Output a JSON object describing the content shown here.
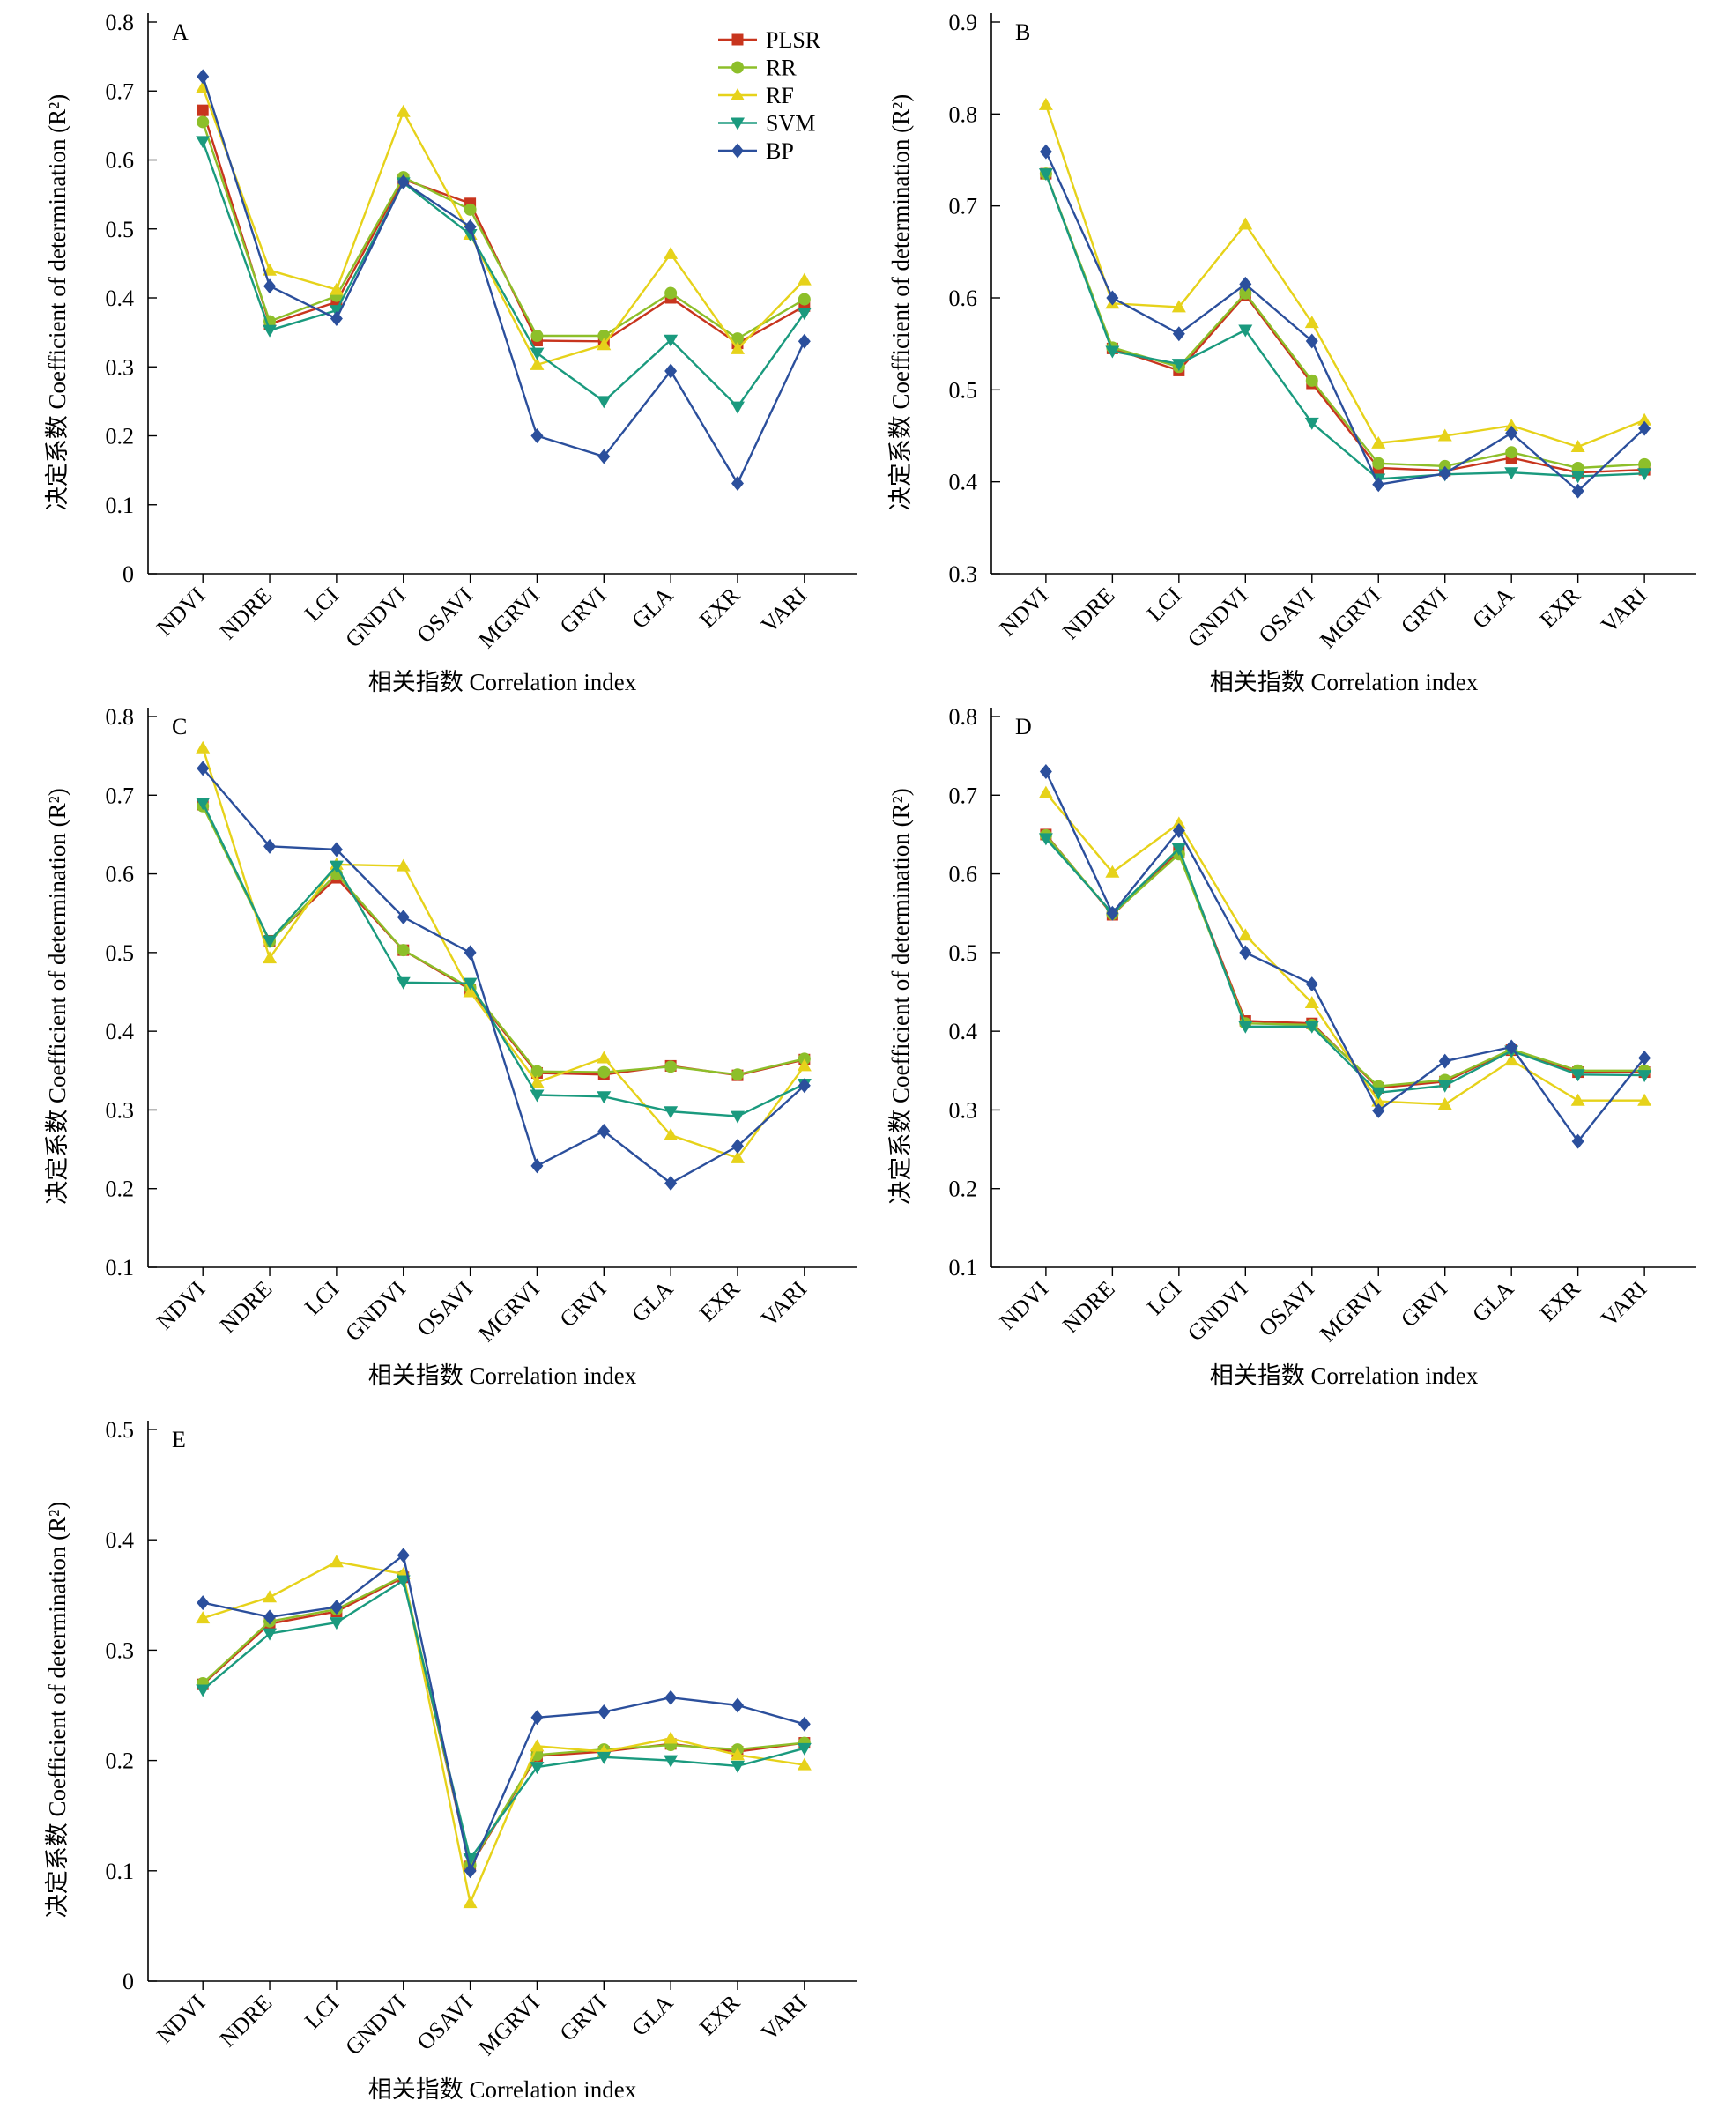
{
  "legend_labels": [
    "PLSR",
    "RR",
    "RF",
    "SVM",
    "BP"
  ],
  "colors": {
    "PLSR": "#c8351e",
    "RR": "#8dbf2a",
    "RF": "#e6d21a",
    "SVM": "#1a9a7e",
    "BP": "#2b4f9c"
  },
  "markers": {
    "PLSR": "square",
    "RR": "circle",
    "RF": "triangle-up",
    "SVM": "triangle-down",
    "BP": "diamond"
  },
  "chart_data": [
    {
      "type": "line",
      "panel_label": "A",
      "categories": [
        "NDVI",
        "NDRE",
        "LCI",
        "GNDVI",
        "OSAVI",
        "MGRVI",
        "GRVI",
        "GLA",
        "EXR",
        "VARI"
      ],
      "xlabel": "相关指数 Correlation index",
      "ylabel": "决定系数 Coefficient of determination (R²)",
      "ylim": [
        0,
        0.8
      ],
      "yticks": [
        "0",
        "0.1",
        "0.2",
        "0.3",
        "0.4",
        "0.5",
        "0.6",
        "0.7",
        "0.8"
      ],
      "legend": "top-right",
      "series": [
        {
          "name": "PLSR",
          "values": [
            0.672,
            0.362,
            0.394,
            0.572,
            0.537,
            0.338,
            0.337,
            0.4,
            0.334,
            0.388
          ]
        },
        {
          "name": "RR",
          "values": [
            0.655,
            0.366,
            0.403,
            0.575,
            0.528,
            0.345,
            0.345,
            0.407,
            0.341,
            0.398
          ]
        },
        {
          "name": "RF",
          "values": [
            0.705,
            0.44,
            0.412,
            0.67,
            0.492,
            0.303,
            0.332,
            0.464,
            0.326,
            0.426
          ]
        },
        {
          "name": "SVM",
          "values": [
            0.627,
            0.353,
            0.382,
            0.567,
            0.492,
            0.32,
            0.25,
            0.339,
            0.242,
            0.378
          ]
        },
        {
          "name": "BP",
          "values": [
            0.721,
            0.417,
            0.37,
            0.568,
            0.503,
            0.2,
            0.17,
            0.294,
            0.131,
            0.337
          ]
        }
      ]
    },
    {
      "type": "line",
      "panel_label": "B",
      "categories": [
        "NDVI",
        "NDRE",
        "LCI",
        "GNDVI",
        "OSAVI",
        "MGRVI",
        "GRVI",
        "GLA",
        "EXR",
        "VARI"
      ],
      "xlabel": "相关指数 Correlation index",
      "ylabel": "决定系数 Coefficient of determination (R²)",
      "ylim": [
        0.3,
        0.9
      ],
      "yticks": [
        "0.3",
        "0.4",
        "0.5",
        "0.6",
        "0.7",
        "0.8",
        "0.9"
      ],
      "series": [
        {
          "name": "PLSR",
          "values": [
            0.735,
            0.545,
            0.521,
            0.603,
            0.507,
            0.415,
            0.412,
            0.426,
            0.41,
            0.413
          ]
        },
        {
          "name": "RR",
          "values": [
            0.735,
            0.546,
            0.525,
            0.605,
            0.51,
            0.42,
            0.417,
            0.432,
            0.415,
            0.419
          ]
        },
        {
          "name": "RF",
          "values": [
            0.81,
            0.594,
            0.59,
            0.68,
            0.573,
            0.442,
            0.45,
            0.461,
            0.438,
            0.467
          ]
        },
        {
          "name": "SVM",
          "values": [
            0.735,
            0.542,
            0.528,
            0.565,
            0.464,
            0.403,
            0.408,
            0.41,
            0.406,
            0.409
          ]
        },
        {
          "name": "BP",
          "values": [
            0.759,
            0.6,
            0.561,
            0.615,
            0.553,
            0.397,
            0.409,
            0.453,
            0.39,
            0.458
          ]
        }
      ]
    },
    {
      "type": "line",
      "panel_label": "C",
      "categories": [
        "NDVI",
        "NDRE",
        "LCI",
        "GNDVI",
        "OSAVI",
        "MGRVI",
        "GRVI",
        "GLA",
        "EXR",
        "VARI"
      ],
      "xlabel": "相关指数 Correlation index",
      "ylabel": "决定系数 Coefficient of determination (R²)",
      "ylim": [
        0.1,
        0.8
      ],
      "yticks": [
        "0.1",
        "0.2",
        "0.3",
        "0.4",
        "0.5",
        "0.6",
        "0.7",
        "0.8"
      ],
      "series": [
        {
          "name": "PLSR",
          "values": [
            0.688,
            0.515,
            0.595,
            0.503,
            0.453,
            0.347,
            0.345,
            0.356,
            0.344,
            0.364
          ]
        },
        {
          "name": "RR",
          "values": [
            0.686,
            0.514,
            0.6,
            0.503,
            0.455,
            0.349,
            0.348,
            0.355,
            0.345,
            0.365
          ]
        },
        {
          "name": "RF",
          "values": [
            0.76,
            0.493,
            0.612,
            0.61,
            0.45,
            0.335,
            0.366,
            0.268,
            0.239,
            0.356
          ]
        },
        {
          "name": "SVM",
          "values": [
            0.69,
            0.515,
            0.61,
            0.462,
            0.461,
            0.319,
            0.317,
            0.298,
            0.292,
            0.333
          ]
        },
        {
          "name": "BP",
          "values": [
            0.734,
            0.635,
            0.631,
            0.545,
            0.5,
            0.229,
            0.273,
            0.207,
            0.254,
            0.331
          ]
        }
      ]
    },
    {
      "type": "line",
      "panel_label": "D",
      "categories": [
        "NDVI",
        "NDRE",
        "LCI",
        "GNDVI",
        "OSAVI",
        "MGRVI",
        "GRVI",
        "GLA",
        "EXR",
        "VARI"
      ],
      "xlabel": "相关指数 Correlation index",
      "ylabel": "决定系数 Coefficient of determination (R²)",
      "ylim": [
        0.1,
        0.8
      ],
      "yticks": [
        "0.1",
        "0.2",
        "0.3",
        "0.4",
        "0.5",
        "0.6",
        "0.7",
        "0.8"
      ],
      "series": [
        {
          "name": "PLSR",
          "values": [
            0.65,
            0.548,
            0.628,
            0.413,
            0.41,
            0.328,
            0.336,
            0.376,
            0.348,
            0.348
          ]
        },
        {
          "name": "RR",
          "values": [
            0.649,
            0.549,
            0.625,
            0.41,
            0.408,
            0.33,
            0.338,
            0.377,
            0.35,
            0.35
          ]
        },
        {
          "name": "RF",
          "values": [
            0.703,
            0.602,
            0.664,
            0.522,
            0.436,
            0.311,
            0.307,
            0.363,
            0.312,
            0.312
          ]
        },
        {
          "name": "SVM",
          "values": [
            0.645,
            0.55,
            0.632,
            0.406,
            0.406,
            0.322,
            0.331,
            0.375,
            0.345,
            0.344
          ]
        },
        {
          "name": "BP",
          "values": [
            0.73,
            0.55,
            0.655,
            0.5,
            0.46,
            0.299,
            0.362,
            0.38,
            0.26,
            0.366
          ]
        }
      ]
    },
    {
      "type": "line",
      "panel_label": "E",
      "categories": [
        "NDVI",
        "NDRE",
        "LCI",
        "GNDVI",
        "OSAVI",
        "MGRVI",
        "GRVI",
        "GLA",
        "EXR",
        "VARI"
      ],
      "xlabel": "相关指数 Correlation index",
      "ylabel": "决定系数 Coefficient of determination (R²)",
      "ylim": [
        0,
        0.5
      ],
      "yticks": [
        "0",
        "0.1",
        "0.2",
        "0.3",
        "0.4",
        "0.5"
      ],
      "series": [
        {
          "name": "PLSR",
          "values": [
            0.269,
            0.324,
            0.335,
            0.366,
            0.104,
            0.204,
            0.208,
            0.215,
            0.208,
            0.216
          ]
        },
        {
          "name": "RR",
          "values": [
            0.27,
            0.326,
            0.337,
            0.367,
            0.105,
            0.205,
            0.21,
            0.214,
            0.21,
            0.216
          ]
        },
        {
          "name": "RF",
          "values": [
            0.329,
            0.348,
            0.38,
            0.369,
            0.071,
            0.213,
            0.208,
            0.22,
            0.205,
            0.196
          ]
        },
        {
          "name": "SVM",
          "values": [
            0.264,
            0.315,
            0.325,
            0.363,
            0.111,
            0.194,
            0.203,
            0.2,
            0.195,
            0.211
          ]
        },
        {
          "name": "BP",
          "values": [
            0.343,
            0.33,
            0.339,
            0.386,
            0.1,
            0.239,
            0.244,
            0.257,
            0.25,
            0.233
          ]
        }
      ]
    }
  ]
}
